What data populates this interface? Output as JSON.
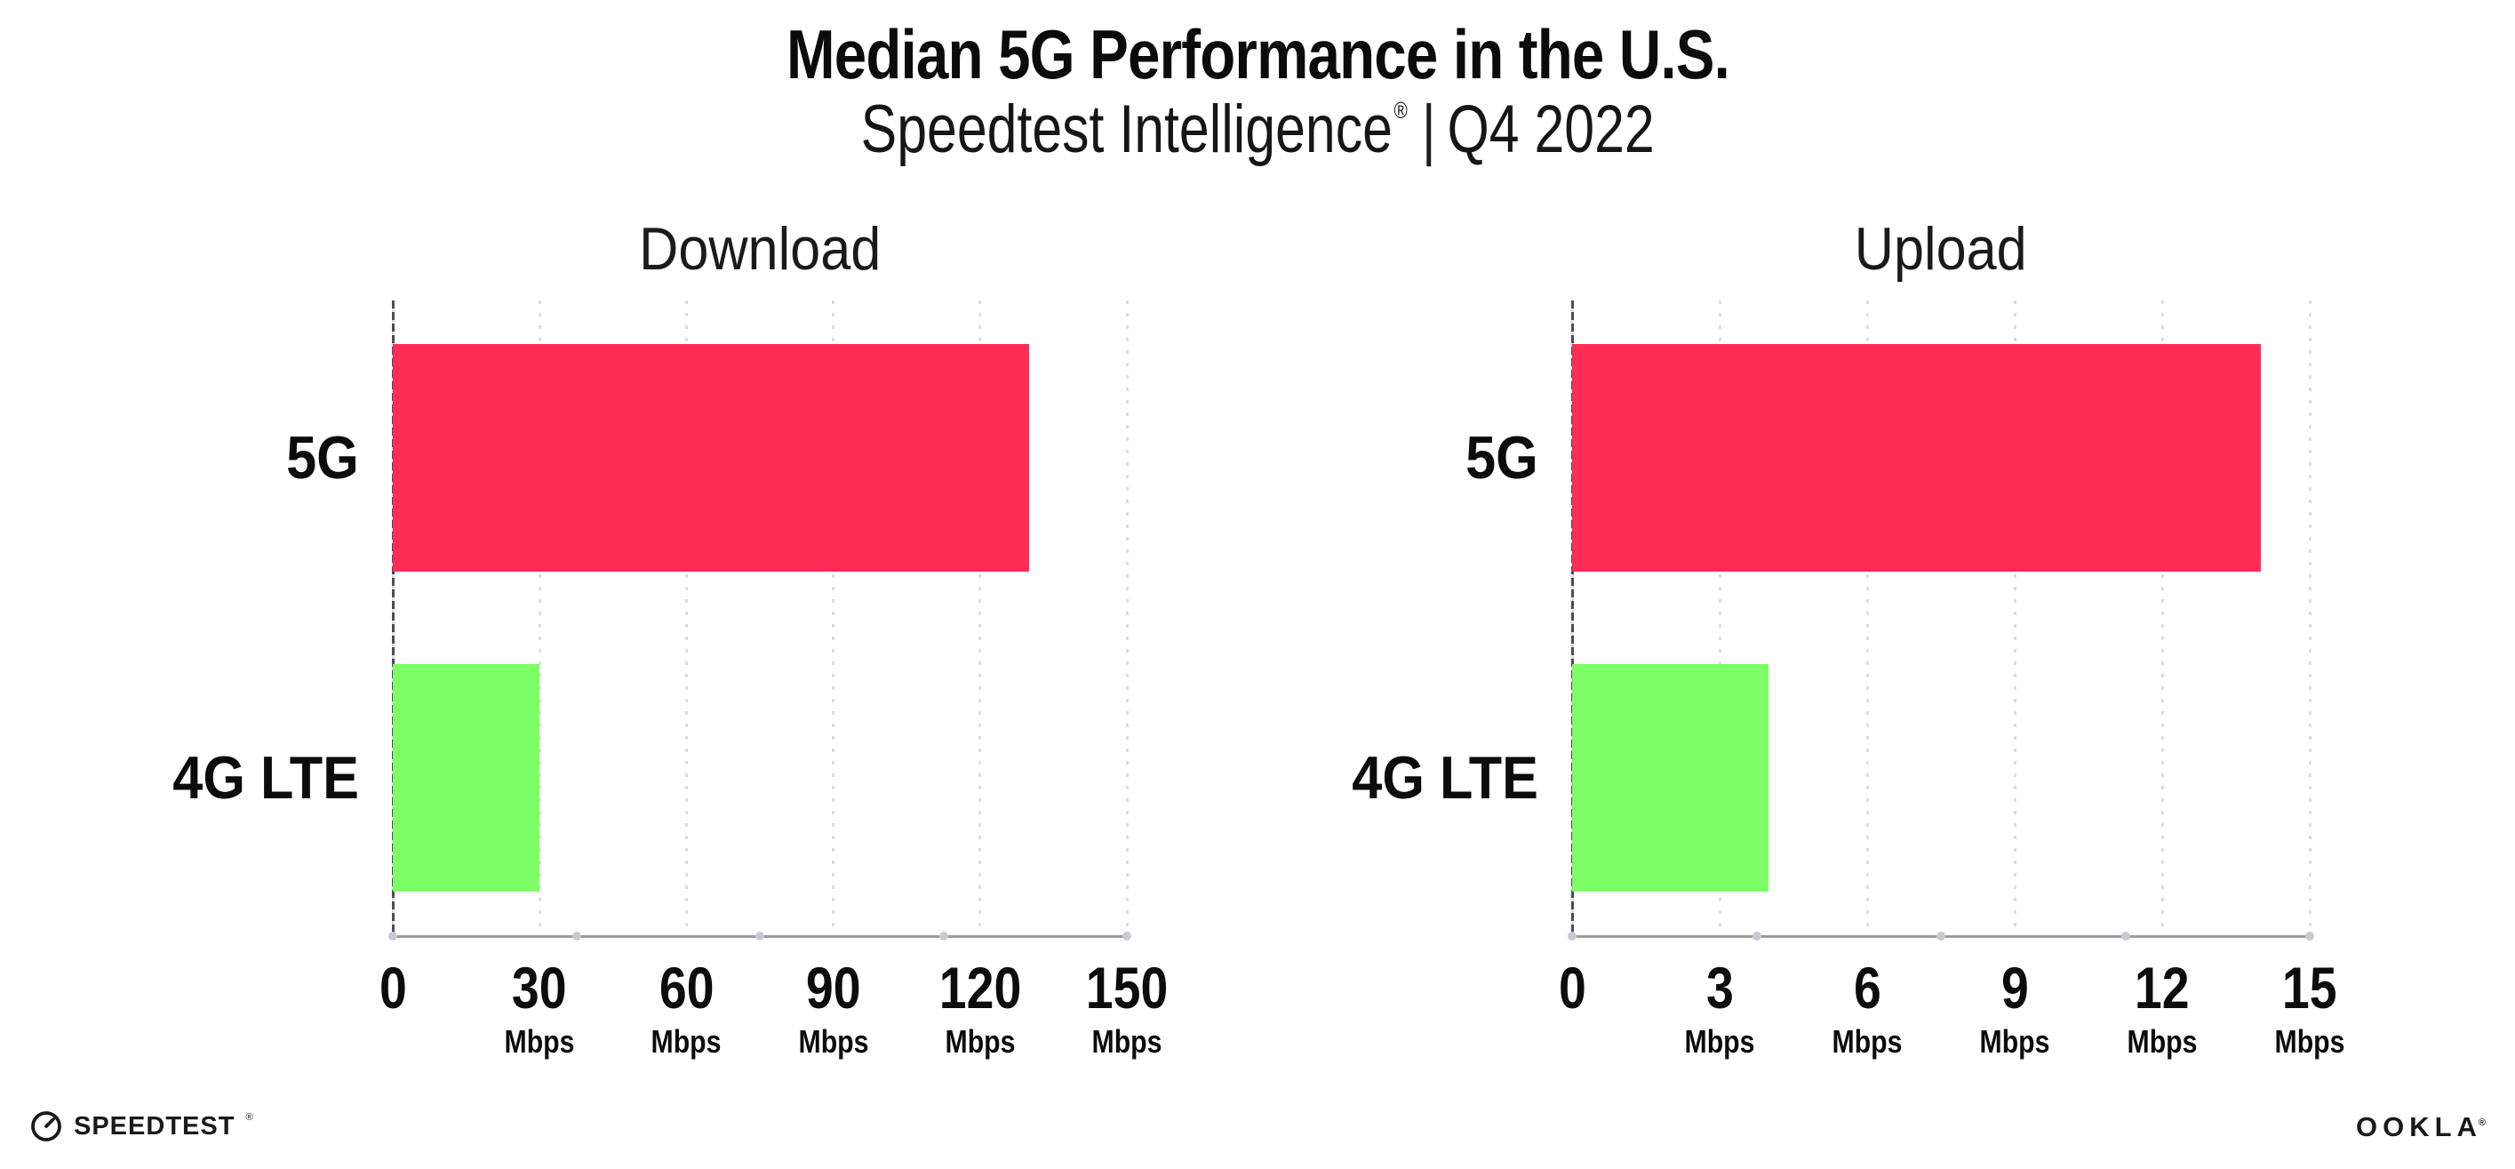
{
  "header": {
    "title": "Median 5G Performance in the U.S.",
    "subtitle_brand": "Speedtest Intelligence",
    "subtitle_registered": "®",
    "subtitle_divider": "|",
    "subtitle_period": "Q4 2022"
  },
  "chart_data": [
    {
      "type": "bar",
      "orientation": "horizontal",
      "title": "Download",
      "categories": [
        "5G",
        "4G LTE"
      ],
      "values": [
        130,
        30
      ],
      "unit": "Mbps",
      "xlim": [
        0,
        150
      ],
      "xticks": [
        0,
        30,
        60,
        90,
        120,
        150
      ],
      "bar_colors": [
        "#ff2d55",
        "#7dfd66"
      ],
      "grid": "dotted-vertical-gridlines",
      "legend": "none"
    },
    {
      "type": "bar",
      "orientation": "horizontal",
      "title": "Upload",
      "categories": [
        "5G",
        "4G LTE"
      ],
      "values": [
        14,
        4
      ],
      "unit": "Mbps",
      "xlim": [
        0,
        15
      ],
      "xticks": [
        0,
        3,
        6,
        9,
        12,
        15
      ],
      "bar_colors": [
        "#ff2d55",
        "#7dfd66"
      ],
      "grid": "dotted-vertical-gridlines",
      "legend": "none"
    }
  ],
  "colors": {
    "bar_5g": "#ff2d55",
    "bar_4g_lte": "#7dfd66",
    "axis": "#9b9ba1",
    "gridline": "#dcdce6",
    "background": "#ffffff",
    "text": "#0f0f0f"
  },
  "footer": {
    "speedtest_logo_text": "SPEEDTEST",
    "speedtest_trademark": "®",
    "ookla_logo_text": "OOKLA",
    "ookla_trademark": "®"
  }
}
